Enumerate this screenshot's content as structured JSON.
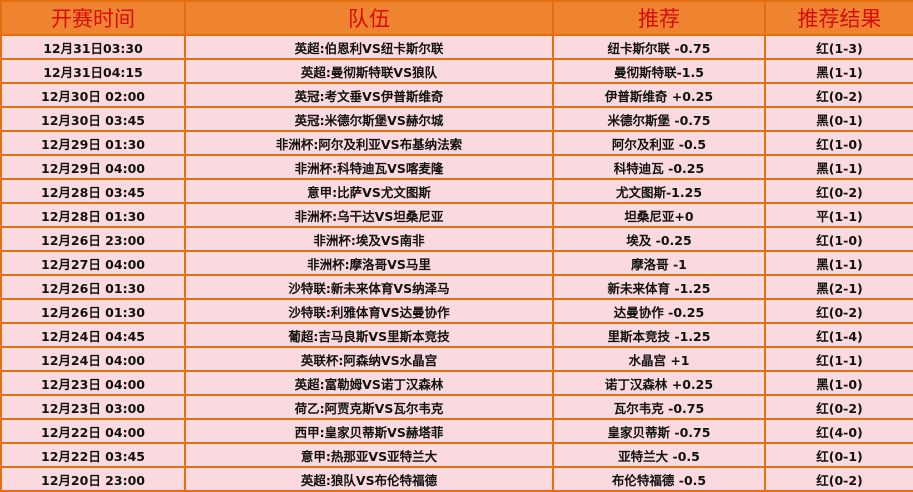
{
  "headers": [
    "开赛时间",
    "队伍",
    "推荐",
    "推荐结果"
  ],
  "colors": {
    "header_bg": "#ee8430",
    "header_text": "#d80c0c",
    "row_bg": "#fadadf",
    "border": "#e8700c"
  },
  "rows": [
    {
      "time": "12月31日03:30",
      "teams": "英超:伯恩利VS纽卡斯尔联",
      "pick": "纽卡斯尔联 -0.75",
      "result": "红(1-3)"
    },
    {
      "time": "12月31日04:15",
      "teams": "英超:曼彻斯特联VS狼队",
      "pick": "曼彻斯特联-1.5",
      "result": "黑(1-1)"
    },
    {
      "time": "12月30日 02:00",
      "teams": "英冠:考文垂VS伊普斯维奇",
      "pick": "伊普斯维奇 +0.25",
      "result": "红(0-2)"
    },
    {
      "time": "12月30日 03:45",
      "teams": "英冠:米德尔斯堡VS赫尔城",
      "pick": "米德尔斯堡 -0.75",
      "result": "黑(0-1)"
    },
    {
      "time": "12月29日 01:30",
      "teams": "非洲杯:阿尔及利亚VS布基纳法索",
      "pick": "阿尔及利亚 -0.5",
      "result": "红(1-0)"
    },
    {
      "time": "12月29日 04:00",
      "teams": "非洲杯:科特迪瓦VS喀麦隆",
      "pick": "科特迪瓦 -0.25",
      "result": "黑(1-1)"
    },
    {
      "time": "12月28日 03:45",
      "teams": "意甲:比萨VS尤文图斯",
      "pick": "尤文图斯-1.25",
      "result": "红(0-2)"
    },
    {
      "time": "12月28日 01:30",
      "teams": "非洲杯:乌干达VS坦桑尼亚",
      "pick": "坦桑尼亚+0",
      "result": "平(1-1)"
    },
    {
      "time": "12月26日 23:00",
      "teams": "非洲杯:埃及VS南非",
      "pick": "埃及 -0.25",
      "result": "红(1-0)"
    },
    {
      "time": "12月27日 04:00",
      "teams": "非洲杯:摩洛哥VS马里",
      "pick": "摩洛哥 -1",
      "result": "黑(1-1)"
    },
    {
      "time": "12月26日 01:30",
      "teams": "沙特联:新未来体育VS纳泽马",
      "pick": "新未来体育 -1.25",
      "result": "黑(2-1)"
    },
    {
      "time": "12月26日 01:30",
      "teams": "沙特联:利雅体育VS达曼协作",
      "pick": "达曼协作 -0.25",
      "result": "红(0-2)"
    },
    {
      "time": "12月24日 04:45",
      "teams": "葡超:吉马良斯VS里斯本竞技",
      "pick": "里斯本竞技 -1.25",
      "result": "红(1-4)"
    },
    {
      "time": "12月24日 04:00",
      "teams": "英联杯:阿森纳VS水晶宫",
      "pick": "水晶宫 +1",
      "result": "红(1-1)"
    },
    {
      "time": "12月23日 04:00",
      "teams": "英超:富勒姆VS诺丁汉森林",
      "pick": "诺丁汉森林 +0.25",
      "result": "黑(1-0)"
    },
    {
      "time": "12月23日 03:00",
      "teams": "荷乙:阿贾克斯VS瓦尔韦克",
      "pick": "瓦尔韦克 -0.75",
      "result": "红(0-2)"
    },
    {
      "time": "12月22日 04:00",
      "teams": "西甲:皇家贝蒂斯VS赫塔菲",
      "pick": "皇家贝蒂斯 -0.75",
      "result": "红(4-0)"
    },
    {
      "time": "12月22日 03:45",
      "teams": "意甲:热那亚VS亚特兰大",
      "pick": "亚特兰大 -0.5",
      "result": "红(0-1)"
    },
    {
      "time": "12月20日 23:00",
      "teams": "英超:狼队VS布伦特福德",
      "pick": "布伦特福德 -0.5",
      "result": "红(0-2)"
    }
  ]
}
